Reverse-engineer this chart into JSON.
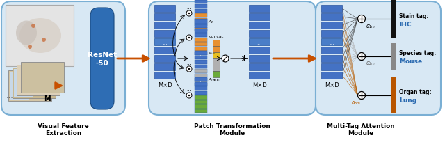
{
  "fig_width": 6.4,
  "fig_height": 2.05,
  "dpi": 100,
  "bg_color": "#ffffff",
  "blue_dark": "#2e6db4",
  "blue_bar": "#4472c4",
  "blue_light_bar": "#6fa0d8",
  "orange_arrow": "#c85000",
  "orange_brown": "#b85c00",
  "gray_bar": "#888888",
  "gray_light": "#b0b0b0",
  "green_bar": "#6aaa3a",
  "yellow_bar": "#e8c020",
  "orange_bar": "#e89030",
  "section1_title": "Visual Feature\nExtraction",
  "section2_title": "Patch Transformation\nModule",
  "section3_title": "Multi-Tag Attention\nModule",
  "resnet_label": "ResNet\n-50",
  "mxd_label": "M×D",
  "stain_tag_label": "Stain tag:",
  "stain_tag_value": "IHC",
  "species_tag_label": "Species tag:",
  "species_tag_value": "Mouse",
  "organ_tag_label": "Organ tag:",
  "organ_tag_value": "Lung",
  "alpha1_label": "α₁ₘ",
  "alpha2_label": "α₂ₘ",
  "alpha3_label": "α₃ₘ",
  "concat_label": "concat",
  "relu_label": "relu",
  "m_label": "M"
}
